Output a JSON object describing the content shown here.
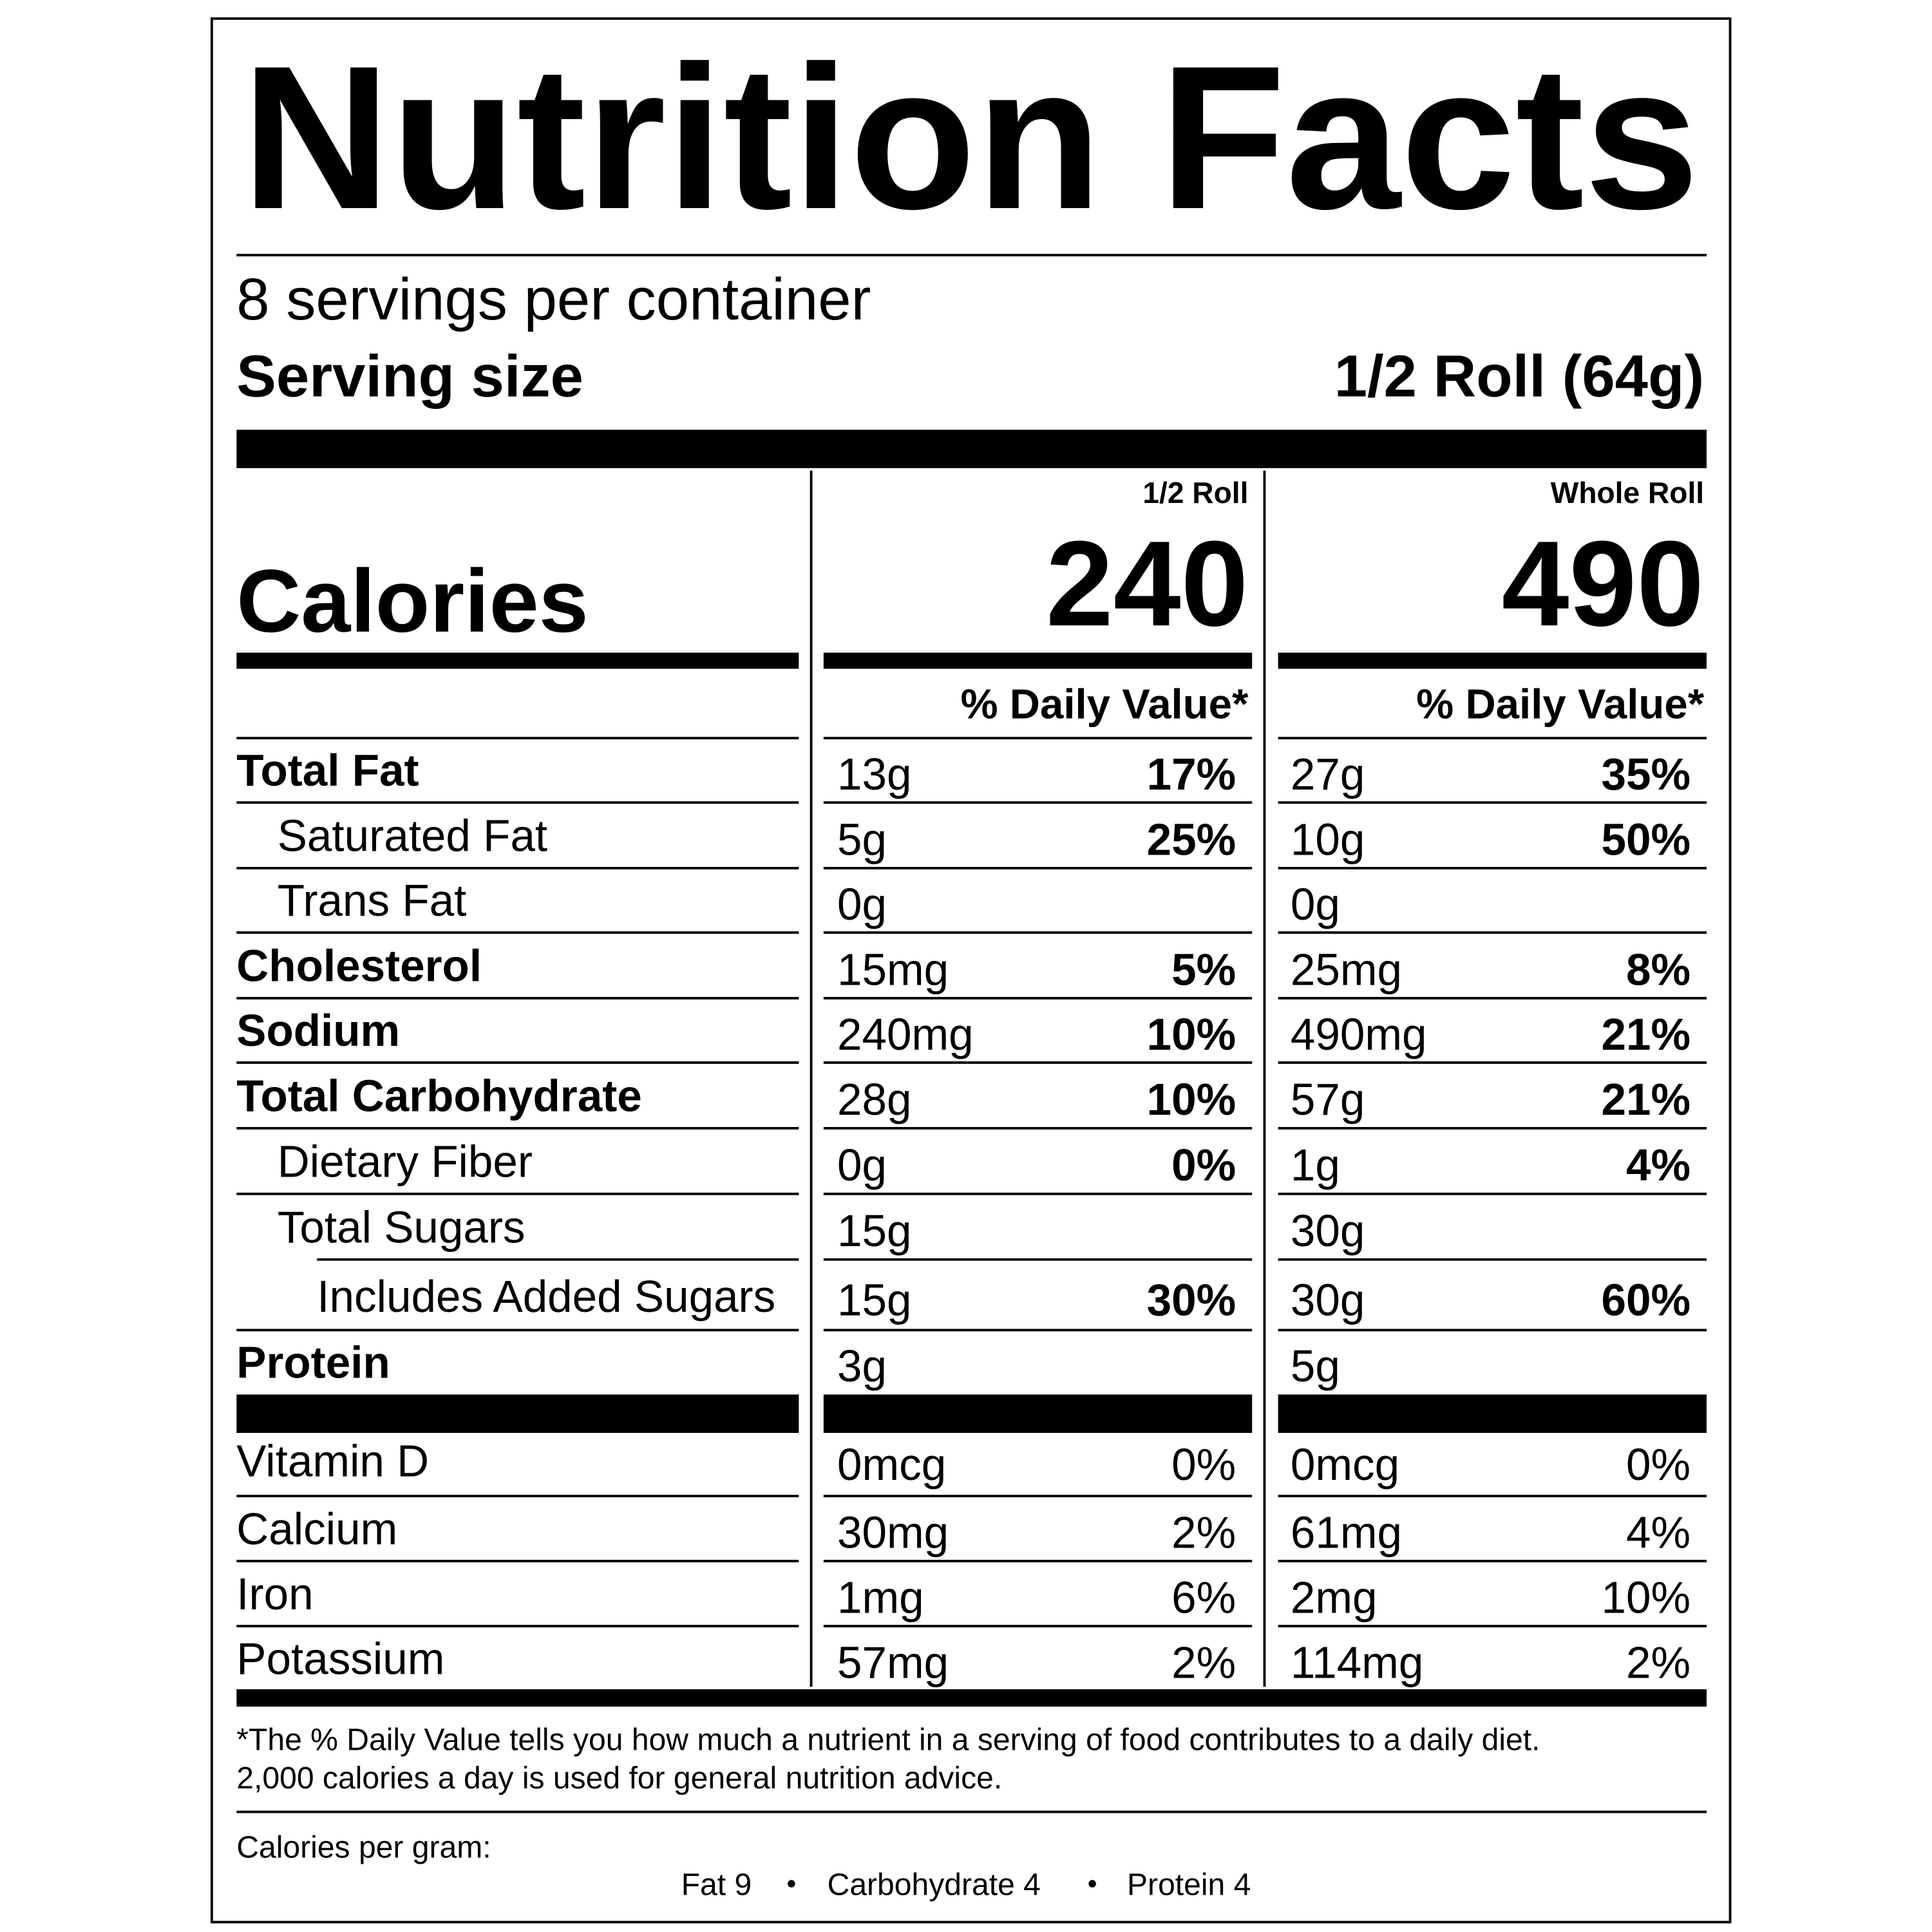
{
  "title": "Nutrition Facts",
  "servings": "8 servings per container",
  "serving_size": {
    "label": "Serving size",
    "value": "1/2 Roll (64g)"
  },
  "calories_label": "Calories",
  "columns": [
    {
      "header": "1/2 Roll",
      "calories": "240",
      "dv_header": "% Daily Value*"
    },
    {
      "header": "Whole Roll",
      "calories": "490",
      "dv_header": "% Daily Value*"
    }
  ],
  "nutrients": [
    {
      "name": "Total Fat",
      "bold": true,
      "level": 0,
      "values": [
        {
          "amount": "13g",
          "dv": "17%"
        },
        {
          "amount": "27g",
          "dv": "35%"
        }
      ]
    },
    {
      "name": "Saturated Fat",
      "bold": false,
      "level": 1,
      "values": [
        {
          "amount": "5g",
          "dv": "25%"
        },
        {
          "amount": "10g",
          "dv": "50%"
        }
      ]
    },
    {
      "name": "Trans Fat",
      "bold": false,
      "level": 1,
      "values": [
        {
          "amount": "0g"
        },
        {
          "amount": "0g"
        }
      ]
    },
    {
      "name": "Cholesterol",
      "bold": true,
      "level": 0,
      "values": [
        {
          "amount": "15mg",
          "dv": "5%"
        },
        {
          "amount": "25mg",
          "dv": "8%"
        }
      ]
    },
    {
      "name": "Sodium",
      "bold": true,
      "level": 0,
      "values": [
        {
          "amount": "240mg",
          "dv": "10%"
        },
        {
          "amount": "490mg",
          "dv": "21%"
        }
      ]
    },
    {
      "name": "Total Carbohydrate",
      "bold": true,
      "level": 0,
      "values": [
        {
          "amount": "28g",
          "dv": "10%"
        },
        {
          "amount": "57g",
          "dv": "21%"
        }
      ]
    },
    {
      "name": "Dietary Fiber",
      "bold": false,
      "level": 1,
      "values": [
        {
          "amount": "0g",
          "dv": "0%"
        },
        {
          "amount": "1g",
          "dv": "4%"
        }
      ]
    },
    {
      "name": "Total Sugars",
      "bold": false,
      "level": 1,
      "values": [
        {
          "amount": "15g"
        },
        {
          "amount": "30g"
        }
      ]
    },
    {
      "name": "Includes Added Sugars",
      "bold": false,
      "level": 2,
      "values": [
        {
          "amount": "15g",
          "dv": "30%"
        },
        {
          "amount": "30g",
          "dv": "60%"
        }
      ]
    },
    {
      "name": "Protein",
      "bold": true,
      "level": 0,
      "values": [
        {
          "amount": "3g"
        },
        {
          "amount": "5g"
        }
      ]
    }
  ],
  "vitamins": [
    {
      "name": "Vitamin D",
      "values": [
        {
          "amount": "0mcg",
          "dv": "0%"
        },
        {
          "amount": "0mcg",
          "dv": "0%"
        }
      ]
    },
    {
      "name": "Calcium",
      "values": [
        {
          "amount": "30mg",
          "dv": "2%"
        },
        {
          "amount": "61mg",
          "dv": "4%"
        }
      ]
    },
    {
      "name": "Iron",
      "values": [
        {
          "amount": "1mg",
          "dv": "6%"
        },
        {
          "amount": "2mg",
          "dv": "10%"
        }
      ]
    },
    {
      "name": "Potassium",
      "values": [
        {
          "amount": "57mg",
          "dv": "2%"
        },
        {
          "amount": "114mg",
          "dv": "2%"
        }
      ]
    }
  ],
  "footnote": [
    "*The % Daily Value tells you how much a nutrient in a serving of food contributes to a daily diet.",
    "2,000 calories a day is used for general nutrition advice."
  ],
  "calories_per_gram": {
    "label": "Calories per gram:",
    "items": [
      "Fat 9",
      "Carbohydrate 4",
      "Protein 4"
    ]
  }
}
